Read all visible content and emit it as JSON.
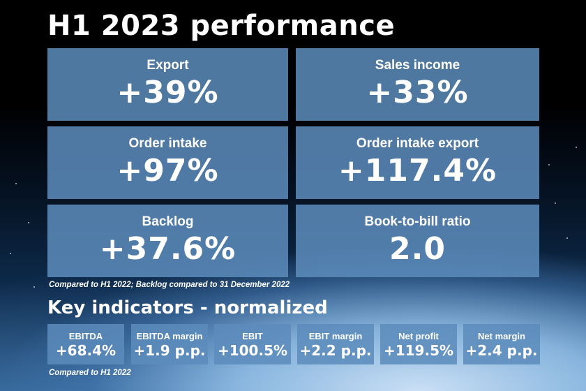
{
  "title": "H1 2023 performance",
  "tiles": [
    {
      "label": "Export",
      "value": "+39%"
    },
    {
      "label": "Sales income",
      "value": "+33%"
    },
    {
      "label": "Order intake",
      "value": "+97%"
    },
    {
      "label": "Order intake export",
      "value": "+117.4%"
    },
    {
      "label": "Backlog",
      "value": "+37.6%"
    },
    {
      "label": "Book-to-bill ratio",
      "value": "2.0"
    }
  ],
  "note_top": "Compared to H1 2022; Backlog compared to 31 December 2022",
  "section_title": "Key indicators - normalized",
  "indicators": [
    {
      "label": "EBITDA",
      "value": "+68.4%"
    },
    {
      "label": "EBITDA margin",
      "value": "+1.9 p.p."
    },
    {
      "label": "EBIT",
      "value": "+100.5%"
    },
    {
      "label": "EBIT margin",
      "value": "+2.2 p.p."
    },
    {
      "label": "Net profit",
      "value": "+119.5%"
    },
    {
      "label": "Net margin",
      "value": "+2.4 p.p."
    }
  ],
  "note_bottom": "Compared to H1 2022",
  "colors": {
    "tile": "#5c8cbc",
    "text": "#ffffff"
  }
}
